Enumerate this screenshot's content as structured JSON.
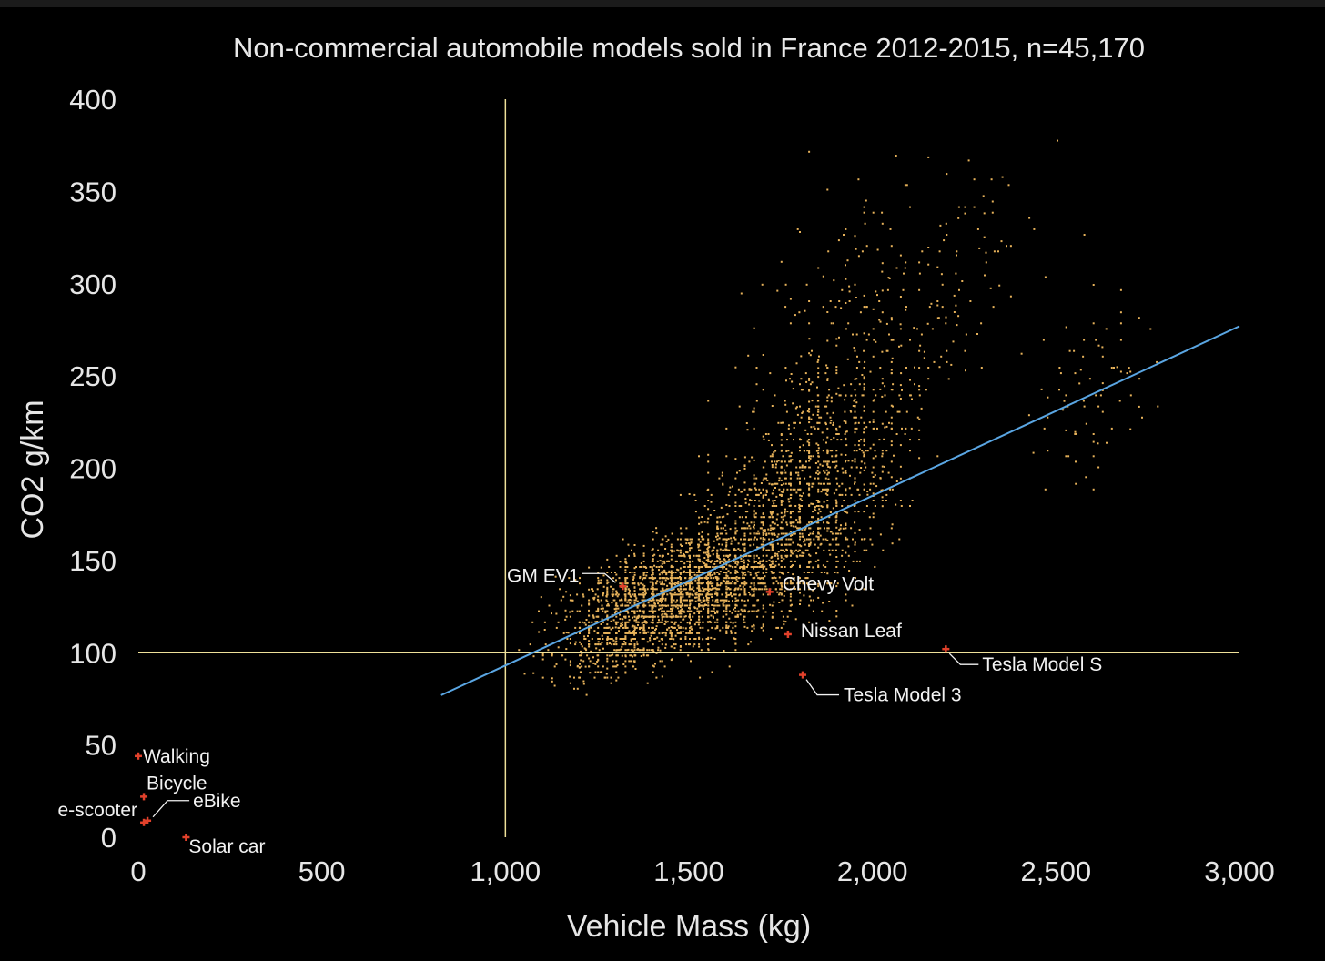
{
  "chart_data": {
    "type": "scatter",
    "title": "Non-commercial automobile models sold in France 2012-2015, n=45,170",
    "xlabel": "Vehicle Mass (kg)",
    "ylabel": "CO2 g/km",
    "xlim": [
      0,
      3000
    ],
    "ylim": [
      0,
      400
    ],
    "x_ticks": [
      "0",
      "500",
      "1,000",
      "1,500",
      "2,000",
      "2,500",
      "3,000"
    ],
    "y_ticks": [
      "0",
      "50",
      "100",
      "150",
      "200",
      "250",
      "300",
      "350",
      "400"
    ],
    "grid": false,
    "reference_lines": {
      "vertical_x": 1000,
      "horizontal_y": 100
    },
    "trendline": {
      "x": [
        825,
        3000
      ],
      "y": [
        77,
        277
      ]
    },
    "highlighted": [
      {
        "label": "Walking",
        "x": 0,
        "y": 44
      },
      {
        "label": "Bicycle",
        "x": 15,
        "y": 22
      },
      {
        "label": "eBike",
        "x": 25,
        "y": 9
      },
      {
        "label": "e-scooter",
        "x": 15,
        "y": 8
      },
      {
        "label": "Solar car",
        "x": 130,
        "y": 0
      },
      {
        "label": "GM EV1",
        "x": 1320,
        "y": 136
      },
      {
        "label": "Chevy Volt",
        "x": 1720,
        "y": 133
      },
      {
        "label": "Nissan Leaf",
        "x": 1770,
        "y": 110
      },
      {
        "label": "Tesla Model S",
        "x": 2200,
        "y": 102
      },
      {
        "label": "Tesla Model 3",
        "x": 1810,
        "y": 88
      }
    ],
    "scatter_density": {
      "description_points": "model points, mass vs CO2",
      "clusters": [
        {
          "x_center": 1450,
          "y_center": 130,
          "x_spread": 260,
          "y_spread": 25,
          "count": 2400
        },
        {
          "x_center": 1750,
          "y_center": 165,
          "x_spread": 230,
          "y_spread": 40,
          "count": 1100
        },
        {
          "x_center": 1900,
          "y_center": 215,
          "x_spread": 220,
          "y_spread": 45,
          "count": 500
        },
        {
          "x_center": 2050,
          "y_center": 290,
          "x_spread": 350,
          "y_spread": 60,
          "count": 260
        },
        {
          "x_center": 2600,
          "y_center": 240,
          "x_spread": 160,
          "y_spread": 45,
          "count": 80
        }
      ],
      "point_color": "#e7b25a"
    },
    "colors": {
      "background": "#000000",
      "points": "#e7b25a",
      "highlight": "#e2412b",
      "trendline": "#5aa6e3",
      "reference_lines": "#efe19a",
      "text": "#e6e6e6"
    }
  }
}
